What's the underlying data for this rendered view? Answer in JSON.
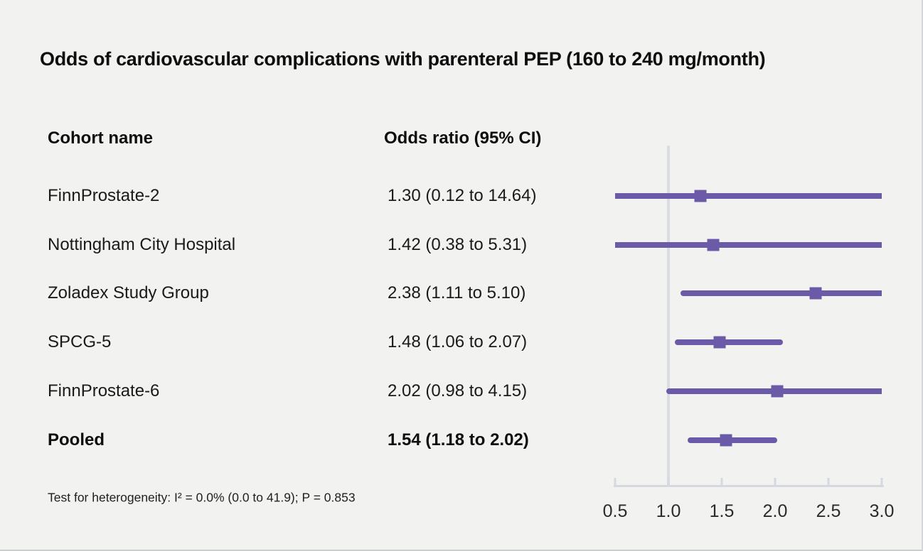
{
  "chart_data": {
    "type": "forest",
    "title": "Odds of cardiovascular complications with parenteral PEP (160 to 240 mg/month)",
    "columns": {
      "cohort": "Cohort name",
      "odds_ratio": "Odds ratio (95% CI)"
    },
    "rows": [
      {
        "cohort": "FinnProstate-2",
        "or_label": "1.30 (0.12 to 14.64)",
        "or": 1.3,
        "ci_low": 0.12,
        "ci_high": 14.64,
        "bold": false
      },
      {
        "cohort": "Nottingham City Hospital",
        "or_label": "1.42 (0.38 to 5.31)",
        "or": 1.42,
        "ci_low": 0.38,
        "ci_high": 5.31,
        "bold": false
      },
      {
        "cohort": "Zoladex Study Group",
        "or_label": "2.38 (1.11 to 5.10)",
        "or": 2.38,
        "ci_low": 1.11,
        "ci_high": 5.1,
        "bold": false
      },
      {
        "cohort": "SPCG-5",
        "or_label": "1.48 (1.06 to 2.07)",
        "or": 1.48,
        "ci_low": 1.06,
        "ci_high": 2.07,
        "bold": false
      },
      {
        "cohort": "FinnProstate-6",
        "or_label": "2.02 (0.98 to 4.15)",
        "or": 2.02,
        "ci_low": 0.98,
        "ci_high": 4.15,
        "bold": false
      },
      {
        "cohort": "Pooled",
        "or_label": "1.54 (1.18 to 2.02)",
        "or": 1.54,
        "ci_low": 1.18,
        "ci_high": 2.02,
        "bold": true
      }
    ],
    "x_axis": {
      "min": 0.5,
      "max": 3.0,
      "tick_values": [
        0.5,
        1.0,
        1.5,
        2.0,
        2.5,
        3.0
      ],
      "tick_labels": [
        "0.5",
        "1.0",
        "1.5",
        "2.0",
        "2.5",
        "3.0"
      ],
      "reference_value": 1.0
    },
    "footnote": "Test for heterogeneity: I² = 0.0% (0.0 to 41.9); P = 0.853",
    "legend": null,
    "grid": false,
    "colors": {
      "marker": "#6b5aa7",
      "axis": "#d5d8df",
      "reference_line": "#d9dce3",
      "background": "#f2f2f1",
      "text": "#161616"
    }
  }
}
